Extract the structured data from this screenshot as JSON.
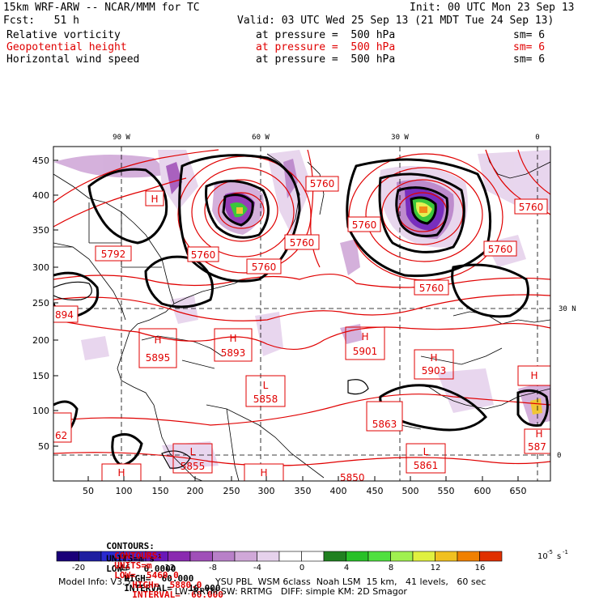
{
  "header": {
    "line1_left": "15km WRF-ARW -- NCAR/MMM for TC",
    "line1_right": "Init: 00 UTC Mon 23 Sep 13",
    "line2_left": "Fcst:   51 h",
    "line2_right": "Valid: 03 UTC Wed 25 Sep 13 (21 MDT Tue 24 Sep 13)"
  },
  "fields": [
    {
      "name": "Relative vorticity",
      "level": "at pressure =  500 hPa",
      "smooth": "sm= 6",
      "color": "#000000"
    },
    {
      "name": "Geopotential height",
      "level": "at pressure =  500 hPa",
      "smooth": "sm= 6",
      "color": "#e00000"
    },
    {
      "name": "Horizontal wind speed",
      "level": "at pressure =  500 hPa",
      "smooth": "sm= 6",
      "color": "#000000"
    }
  ],
  "map": {
    "lon_labels": [
      "90 W",
      "60 W",
      "30 W",
      "0"
    ],
    "lat_labels": [
      "30 N",
      "0"
    ],
    "x_ticks": [
      "50",
      "100",
      "150",
      "200",
      "250",
      "300",
      "350",
      "400",
      "450",
      "500",
      "550",
      "600",
      "650"
    ],
    "y_ticks": [
      "450",
      "400",
      "350",
      "300",
      "250",
      "200",
      "150",
      "100",
      "50"
    ],
    "highs": [
      {
        "label": "H",
        "value": "5895"
      },
      {
        "label": "H",
        "value": "5893"
      },
      {
        "label": "H",
        "value": "5901"
      },
      {
        "label": "H",
        "value": "5903"
      }
    ],
    "lows": [
      {
        "label": "L",
        "value": "5858"
      },
      {
        "label": "L",
        "value": "5861"
      },
      {
        "label": "L",
        "value": "5855"
      }
    ],
    "contour_labels": [
      "5760",
      "5760",
      "5760",
      "5760",
      "5760",
      "5760",
      "5760",
      "5760"
    ],
    "edge_labels": [
      "894",
      "5792",
      "62",
      "5863",
      "587",
      "5850"
    ],
    "bare_marks": [
      "H",
      "H",
      "H",
      "H",
      "H"
    ]
  },
  "contours_line1": {
    "prefix": "CONTOURS:",
    "units": "UNITS=m s",
    "units_sup": "-1",
    "low": "LOW=   0.0000",
    "high": "HIGH=  60.000",
    "interval": "INTERVAL=   10.000"
  },
  "contours_line2": {
    "prefix": "CONTOURS:",
    "units": "UNITS=m",
    "low": "LOW=  5460.0",
    "high": "HIGH=  5880.0",
    "interval": "INTERVAL=  60.000"
  },
  "colorbar": {
    "labels": [
      "-20",
      "-16",
      "-12",
      "-8",
      "-4",
      "0",
      "4",
      "8",
      "12",
      "16"
    ],
    "units": "10",
    "units_sup1": "-5",
    "units_sup2": "s",
    "units_sup3": "-1",
    "colors": [
      "#1a0078",
      "#1e1ea0",
      "#2a2ad0",
      "#4a28c8",
      "#6a18b8",
      "#8a2ab0",
      "#a050b8",
      "#b880c8",
      "#d0a8d8",
      "#e6d2ec",
      "#ffffff",
      "#ffffff",
      "#208020",
      "#28c028",
      "#50e040",
      "#a0f050",
      "#e0f040",
      "#f0c020",
      "#f08000",
      "#e03000"
    ]
  },
  "footer": {
    "model_info": "Model Info: V3.5",
    "line1": "YSU PBL  WSM 6class  Noah LSM  15 km,   41 levels,   60 sec",
    "line2": "LW: RRTM SW: RRTMG   DIFF: simple KM: 2D Smagor"
  }
}
